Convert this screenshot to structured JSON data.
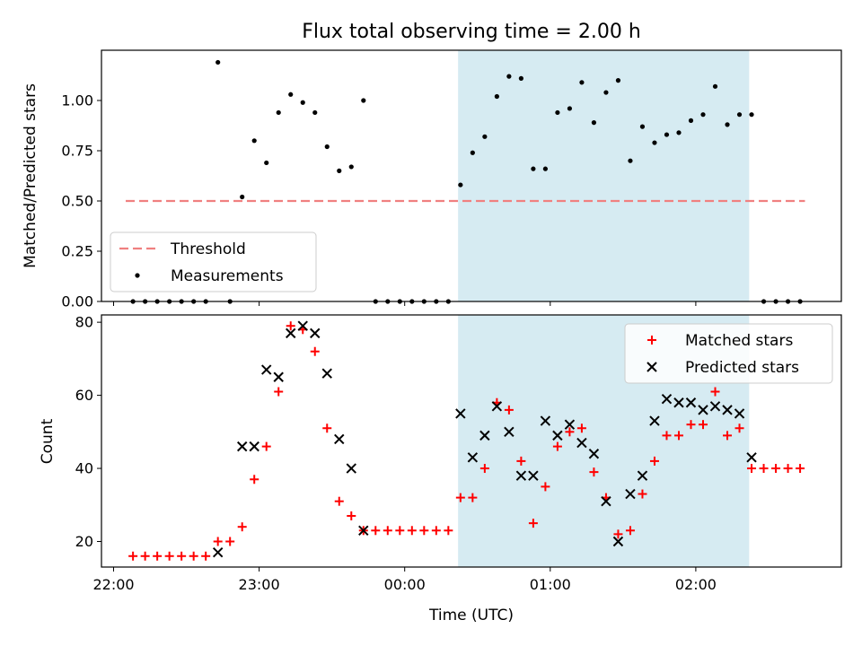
{
  "chart_data": [
    {
      "type": "scatter",
      "title": "Flux total observing time = 2.00 h",
      "xlabel": "",
      "ylabel": "Matched/Predicted stars",
      "ylim": [
        0,
        1.25
      ],
      "yticks": [
        "0.00",
        "0.25",
        "0.50",
        "0.75",
        "1.00"
      ],
      "x_range": [
        "21:55",
        "03:00"
      ],
      "shaded_region": {
        "start": "00:22",
        "end": "02:22",
        "color": "#add8e6"
      },
      "legend": {
        "position": "lower-left",
        "entries": [
          "Threshold",
          "Measurements"
        ]
      },
      "threshold": {
        "name": "Threshold",
        "value": 0.5,
        "x_start": "22:05",
        "x_end": "02:45",
        "color": "#f08080"
      },
      "series": [
        {
          "name": "Measurements",
          "color": "#000000",
          "points": [
            [
              "22:08",
              0.0
            ],
            [
              "22:13",
              0.0
            ],
            [
              "22:18",
              0.0
            ],
            [
              "22:23",
              0.0
            ],
            [
              "22:28",
              0.0
            ],
            [
              "22:33",
              0.0
            ],
            [
              "22:38",
              0.0
            ],
            [
              "22:43",
              1.19
            ],
            [
              "22:48",
              0.0
            ],
            [
              "22:53",
              0.52
            ],
            [
              "22:58",
              0.8
            ],
            [
              "23:03",
              0.69
            ],
            [
              "23:08",
              0.94
            ],
            [
              "23:13",
              1.03
            ],
            [
              "23:18",
              0.99
            ],
            [
              "23:23",
              0.94
            ],
            [
              "23:28",
              0.77
            ],
            [
              "23:33",
              0.65
            ],
            [
              "23:38",
              0.67
            ],
            [
              "23:43",
              1.0
            ],
            [
              "23:48",
              0.0
            ],
            [
              "23:53",
              0.0
            ],
            [
              "23:58",
              0.0
            ],
            [
              "00:03",
              0.0
            ],
            [
              "00:08",
              0.0
            ],
            [
              "00:13",
              0.0
            ],
            [
              "00:18",
              0.0
            ],
            [
              "00:23",
              0.58
            ],
            [
              "00:28",
              0.74
            ],
            [
              "00:33",
              0.82
            ],
            [
              "00:38",
              1.02
            ],
            [
              "00:43",
              1.12
            ],
            [
              "00:48",
              1.11
            ],
            [
              "00:53",
              0.66
            ],
            [
              "00:58",
              0.66
            ],
            [
              "01:03",
              0.94
            ],
            [
              "01:08",
              0.96
            ],
            [
              "01:13",
              1.09
            ],
            [
              "01:18",
              0.89
            ],
            [
              "01:23",
              1.04
            ],
            [
              "01:28",
              1.1
            ],
            [
              "01:33",
              0.7
            ],
            [
              "01:38",
              0.87
            ],
            [
              "01:43",
              0.79
            ],
            [
              "01:48",
              0.83
            ],
            [
              "01:53",
              0.84
            ],
            [
              "01:58",
              0.9
            ],
            [
              "02:03",
              0.93
            ],
            [
              "02:08",
              1.07
            ],
            [
              "02:13",
              0.88
            ],
            [
              "02:18",
              0.93
            ],
            [
              "02:23",
              0.93
            ],
            [
              "02:28",
              0.0
            ],
            [
              "02:33",
              0.0
            ],
            [
              "02:38",
              0.0
            ],
            [
              "02:43",
              0.0
            ]
          ]
        }
      ]
    },
    {
      "type": "scatter",
      "title": "",
      "xlabel": "Time (UTC)",
      "ylabel": "Count",
      "ylim": [
        13,
        82
      ],
      "yticks": [
        "20",
        "40",
        "60",
        "80"
      ],
      "xticks": [
        "22:00",
        "23:00",
        "00:00",
        "01:00",
        "02:00"
      ],
      "x_range": [
        "21:55",
        "03:00"
      ],
      "shaded_region": {
        "start": "00:22",
        "end": "02:22",
        "color": "#add8e6"
      },
      "legend": {
        "position": "top-right",
        "entries": [
          "Matched stars",
          "Predicted stars"
        ]
      },
      "series": [
        {
          "name": "Matched stars",
          "marker": "plus",
          "color": "#ff0000",
          "points": [
            [
              "22:08",
              16
            ],
            [
              "22:13",
              16
            ],
            [
              "22:18",
              16
            ],
            [
              "22:23",
              16
            ],
            [
              "22:28",
              16
            ],
            [
              "22:33",
              16
            ],
            [
              "22:38",
              16
            ],
            [
              "22:43",
              20
            ],
            [
              "22:48",
              20
            ],
            [
              "22:53",
              24
            ],
            [
              "22:58",
              37
            ],
            [
              "23:03",
              46
            ],
            [
              "23:08",
              61
            ],
            [
              "23:13",
              79
            ],
            [
              "23:18",
              78
            ],
            [
              "23:23",
              72
            ],
            [
              "23:28",
              51
            ],
            [
              "23:33",
              31
            ],
            [
              "23:38",
              27
            ],
            [
              "23:43",
              23
            ],
            [
              "23:48",
              23
            ],
            [
              "23:53",
              23
            ],
            [
              "23:58",
              23
            ],
            [
              "00:03",
              23
            ],
            [
              "00:08",
              23
            ],
            [
              "00:13",
              23
            ],
            [
              "00:18",
              23
            ],
            [
              "00:23",
              32
            ],
            [
              "00:28",
              32
            ],
            [
              "00:33",
              40
            ],
            [
              "00:38",
              58
            ],
            [
              "00:43",
              56
            ],
            [
              "00:48",
              42
            ],
            [
              "00:53",
              25
            ],
            [
              "00:58",
              35
            ],
            [
              "01:03",
              46
            ],
            [
              "01:08",
              50
            ],
            [
              "01:13",
              51
            ],
            [
              "01:18",
              39
            ],
            [
              "01:23",
              32
            ],
            [
              "01:28",
              22
            ],
            [
              "01:33",
              23
            ],
            [
              "01:38",
              33
            ],
            [
              "01:43",
              42
            ],
            [
              "01:48",
              49
            ],
            [
              "01:53",
              49
            ],
            [
              "01:58",
              52
            ],
            [
              "02:03",
              52
            ],
            [
              "02:08",
              61
            ],
            [
              "02:13",
              49
            ],
            [
              "02:18",
              51
            ],
            [
              "02:23",
              40
            ],
            [
              "02:28",
              40
            ],
            [
              "02:33",
              40
            ],
            [
              "02:38",
              40
            ],
            [
              "02:43",
              40
            ]
          ]
        },
        {
          "name": "Predicted stars",
          "marker": "x",
          "color": "#000000",
          "points": [
            [
              "22:43",
              17
            ],
            [
              "22:53",
              46
            ],
            [
              "22:58",
              46
            ],
            [
              "23:03",
              67
            ],
            [
              "23:08",
              65
            ],
            [
              "23:13",
              77
            ],
            [
              "23:18",
              79
            ],
            [
              "23:23",
              77
            ],
            [
              "23:28",
              66
            ],
            [
              "23:33",
              48
            ],
            [
              "23:38",
              40
            ],
            [
              "23:43",
              23
            ],
            [
              "00:23",
              55
            ],
            [
              "00:28",
              43
            ],
            [
              "00:33",
              49
            ],
            [
              "00:38",
              57
            ],
            [
              "00:43",
              50
            ],
            [
              "00:48",
              38
            ],
            [
              "00:53",
              38
            ],
            [
              "00:58",
              53
            ],
            [
              "01:03",
              49
            ],
            [
              "01:08",
              52
            ],
            [
              "01:13",
              47
            ],
            [
              "01:18",
              44
            ],
            [
              "01:23",
              31
            ],
            [
              "01:28",
              20
            ],
            [
              "01:33",
              33
            ],
            [
              "01:38",
              38
            ],
            [
              "01:43",
              53
            ],
            [
              "01:48",
              59
            ],
            [
              "01:53",
              58
            ],
            [
              "01:58",
              58
            ],
            [
              "02:03",
              56
            ],
            [
              "02:08",
              57
            ],
            [
              "02:13",
              56
            ],
            [
              "02:18",
              55
            ],
            [
              "02:23",
              43
            ]
          ]
        }
      ]
    }
  ]
}
